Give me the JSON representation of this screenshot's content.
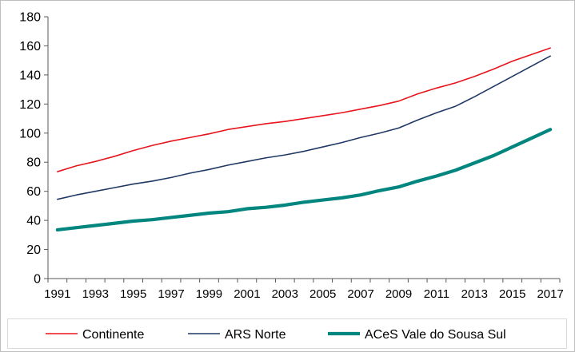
{
  "chart_data": {
    "type": "line",
    "title": "",
    "xlabel": "",
    "ylabel": "",
    "x": [
      1991,
      1992,
      1993,
      1994,
      1995,
      1996,
      1997,
      1998,
      1999,
      2000,
      2001,
      2002,
      2003,
      2004,
      2005,
      2006,
      2007,
      2008,
      2009,
      2010,
      2011,
      2012,
      2013,
      2014,
      2015,
      2016,
      2017
    ],
    "x_tick_labels": [
      "1991",
      "1993",
      "1995",
      "1997",
      "1999",
      "2001",
      "2003",
      "2005",
      "2007",
      "2009",
      "2011",
      "2013",
      "2015",
      "2017"
    ],
    "ylim": [
      0,
      180
    ],
    "y_ticks": [
      0,
      20,
      40,
      60,
      80,
      100,
      120,
      140,
      160,
      180
    ],
    "y_tick_labels": [
      "0",
      "20",
      "40",
      "60",
      "80",
      "100",
      "120",
      "140",
      "160",
      "180"
    ],
    "grid": false,
    "legend_position": "bottom",
    "series": [
      {
        "name": "Continente",
        "color": "#e8141c",
        "line_weight": "thin",
        "values": [
          73.5,
          77.5,
          80.5,
          84,
          88,
          91.5,
          94.5,
          97,
          99.5,
          102.5,
          104.5,
          106.5,
          108,
          110,
          112,
          114,
          116.5,
          119,
          122,
          127,
          131,
          134.5,
          139,
          144,
          149.5,
          154,
          158.5
        ]
      },
      {
        "name": "ARS Norte",
        "color": "#1f3864",
        "line_weight": "thin",
        "values": [
          54.5,
          57.5,
          60,
          62.5,
          65,
          67,
          69.5,
          72.5,
          75,
          78,
          80.5,
          83,
          85,
          87.5,
          90.5,
          93.5,
          97,
          100,
          103.5,
          109,
          114,
          118.5,
          125,
          132,
          139,
          146,
          153
        ]
      },
      {
        "name": "ACeS Vale do Sousa Sul",
        "color": "#00867f",
        "line_weight": "thick",
        "values": [
          33.5,
          35,
          36.5,
          38,
          39.5,
          40.5,
          42,
          43.5,
          45,
          46,
          48,
          49,
          50.5,
          52.5,
          54,
          55.5,
          57.5,
          60.5,
          63,
          67,
          70.5,
          74.5,
          79.5,
          84.5,
          90.5,
          96.5,
          102.5
        ]
      }
    ]
  }
}
